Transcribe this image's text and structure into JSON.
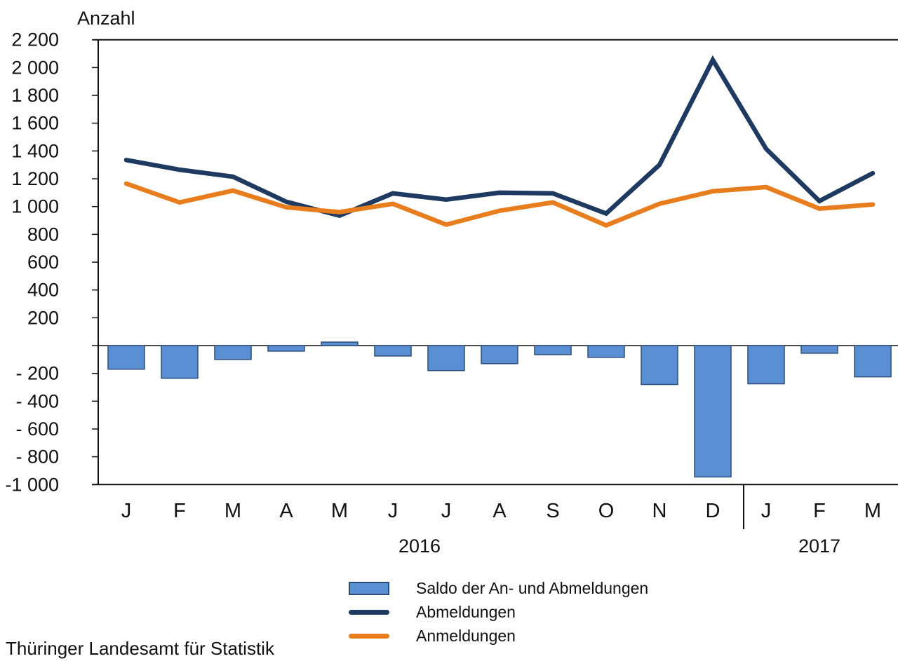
{
  "chart": {
    "y_axis_title": "Anzahl",
    "source": "Thüringer Landesamt für Statistik"
  },
  "chart_data": {
    "type": "bar+line combo",
    "title": "",
    "xlabel": "",
    "ylabel": "Anzahl",
    "categories": [
      "J",
      "F",
      "M",
      "A",
      "M",
      "J",
      "J",
      "A",
      "S",
      "O",
      "N",
      "D",
      "J",
      "F",
      "M"
    ],
    "year_groups": [
      {
        "label": "2016",
        "months": 12
      },
      {
        "label": "2017",
        "months": 3
      }
    ],
    "ylim": [
      -1000,
      2200
    ],
    "y_tick_step": 200,
    "y_tick_labels": [
      "2 200",
      "2 000",
      "1 800",
      "1 600",
      "1 400",
      "1 200",
      "1 000",
      "800",
      "600",
      "400",
      "200",
      "",
      "- 200",
      "- 400",
      "- 600",
      "- 800",
      "-1 000"
    ],
    "grid": "none",
    "legend_position": "bottom",
    "series": [
      {
        "name": "Saldo der An- und Abmeldungen",
        "type": "bar",
        "color": "#5B8FD4",
        "border": "#2E4D7B",
        "values": [
          -170,
          -235,
          -100,
          -40,
          25,
          -75,
          -180,
          -130,
          -65,
          -85,
          -280,
          -945,
          -275,
          -55,
          -225
        ]
      },
      {
        "name": "Abmeldungen",
        "type": "line",
        "color": "#1F3A60",
        "values": [
          1335,
          1265,
          1215,
          1035,
          935,
          1095,
          1050,
          1100,
          1095,
          950,
          1300,
          2055,
          1415,
          1040,
          1240
        ]
      },
      {
        "name": "Anmeldungen",
        "type": "line",
        "color": "#E87D1E",
        "values": [
          1165,
          1030,
          1115,
          995,
          960,
          1020,
          870,
          970,
          1030,
          865,
          1020,
          1110,
          1140,
          985,
          1015
        ]
      }
    ]
  }
}
